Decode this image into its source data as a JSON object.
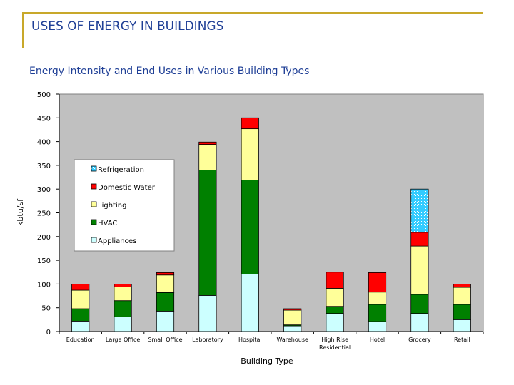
{
  "slide": {
    "title": "USES OF ENERGY IN BUILDINGS"
  },
  "colors": {
    "accent_bar": "#c8a82a",
    "title_text": "#1f3f96",
    "plot_background": "#c0c0c0"
  },
  "chart_data": {
    "type": "bar",
    "stacked": true,
    "title": "Energy Intensity and End Uses in Various Building Types",
    "xlabel": "Building Type",
    "ylabel": "kbtu/sf",
    "ylim": [
      0,
      500
    ],
    "yticks": [
      0,
      50,
      100,
      150,
      200,
      250,
      300,
      350,
      400,
      450,
      500
    ],
    "grid": false,
    "legend_position": "upper-left-inside",
    "categories": [
      [
        "Education"
      ],
      [
        "Large Office"
      ],
      [
        "Small Office"
      ],
      [
        "Laboratory"
      ],
      [
        "Hospital"
      ],
      [
        "Warehouse"
      ],
      [
        "High Rise",
        "Residential"
      ],
      [
        "Hotel"
      ],
      [
        "Grocery"
      ],
      [
        "Retail"
      ]
    ],
    "series": [
      {
        "name": "Appliances",
        "color": "#ccffff",
        "pattern": "solid",
        "values": [
          22,
          31,
          43,
          76,
          121,
          12,
          38,
          21,
          38,
          25
        ]
      },
      {
        "name": "HVAC",
        "color": "#008000",
        "pattern": "solid",
        "values": [
          26,
          34,
          39,
          264,
          198,
          2,
          15,
          36,
          40,
          32
        ]
      },
      {
        "name": "Lighting",
        "color": "#ffff99",
        "pattern": "solid",
        "values": [
          39,
          29,
          37,
          54,
          108,
          31,
          38,
          26,
          102,
          36
        ]
      },
      {
        "name": "Domestic Water",
        "color": "#ff0000",
        "pattern": "solid",
        "values": [
          13,
          6,
          5,
          5,
          23,
          3,
          34,
          41,
          29,
          7
        ]
      },
      {
        "name": "Refrigeration",
        "color": "#33ccff",
        "pattern": "dotted",
        "values": [
          0,
          0,
          0,
          0,
          0,
          0,
          0,
          0,
          91,
          0
        ]
      }
    ],
    "legend_order": [
      "Refrigeration",
      "Domestic Water",
      "Lighting",
      "HVAC",
      "Appliances"
    ]
  }
}
